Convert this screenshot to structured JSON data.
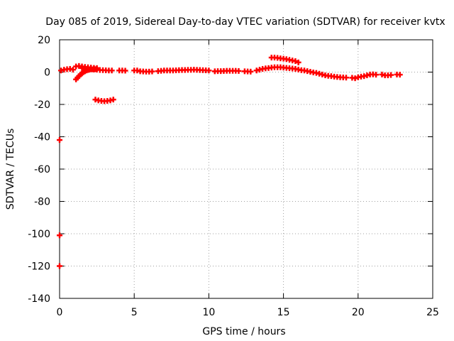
{
  "chart_data": {
    "type": "scatter",
    "title": "Day 085 of 2019, Sidereal Day-to-day VTEC variation (SDTVAR) for receiver kvtx",
    "xlabel": "GPS time / hours",
    "ylabel": "SDTVAR / TECUs",
    "xlim": [
      0,
      25
    ],
    "ylim": [
      -140,
      20
    ],
    "x_ticks": [
      "0",
      "5",
      "10",
      "15",
      "20",
      "25"
    ],
    "y_ticks": [
      "20",
      "0",
      "-20",
      "-40",
      "-60",
      "-80",
      "-100",
      "-120",
      "-140"
    ],
    "grid": true,
    "marker": "plus",
    "color": "#ff0000",
    "series": [
      {
        "points": [
          [
            0.1,
            1.0
          ],
          [
            0.3,
            1.5
          ],
          [
            0.5,
            1.8
          ],
          [
            0.7,
            2.0
          ],
          [
            0.9,
            1.5
          ],
          [
            1.1,
            3.5
          ],
          [
            1.3,
            3.8
          ],
          [
            1.5,
            3.5
          ],
          [
            1.7,
            3.2
          ],
          [
            1.9,
            3.0
          ],
          [
            2.1,
            2.8
          ],
          [
            2.3,
            2.6
          ],
          [
            2.5,
            2.5
          ],
          [
            1.1,
            -4.5
          ],
          [
            1.2,
            -3.5
          ],
          [
            1.3,
            -2.5
          ],
          [
            1.4,
            -1.5
          ],
          [
            1.5,
            -0.8
          ],
          [
            1.6,
            0.0
          ],
          [
            1.7,
            0.5
          ],
          [
            1.8,
            1.0
          ],
          [
            1.9,
            1.3
          ],
          [
            2.0,
            1.5
          ],
          [
            2.2,
            1.7
          ],
          [
            2.4,
            1.8
          ],
          [
            1.5,
            2.5
          ],
          [
            1.7,
            2.2
          ],
          [
            1.9,
            2.0
          ],
          [
            2.1,
            1.8
          ],
          [
            2.3,
            1.6
          ],
          [
            2.5,
            1.5
          ],
          [
            2.7,
            1.3
          ],
          [
            2.9,
            1.2
          ],
          [
            3.1,
            1.1
          ],
          [
            3.3,
            1.0
          ],
          [
            3.5,
            1.0
          ],
          [
            2.4,
            -17.0
          ],
          [
            2.6,
            -17.5
          ],
          [
            2.8,
            -17.8
          ],
          [
            3.0,
            -18.0
          ],
          [
            3.2,
            -17.8
          ],
          [
            3.4,
            -17.5
          ],
          [
            3.6,
            -17.0
          ],
          [
            4.0,
            1.0
          ],
          [
            4.2,
            1.0
          ],
          [
            4.4,
            0.9
          ],
          [
            5.0,
            1.0
          ],
          [
            5.2,
            1.0
          ],
          [
            5.4,
            0.5
          ],
          [
            5.6,
            0.4
          ],
          [
            5.8,
            0.3
          ],
          [
            6.0,
            0.3
          ],
          [
            6.2,
            0.4
          ],
          [
            6.6,
            0.6
          ],
          [
            6.8,
            0.8
          ],
          [
            7.0,
            1.0
          ],
          [
            7.2,
            1.0
          ],
          [
            7.4,
            1.0
          ],
          [
            7.6,
            1.0
          ],
          [
            7.8,
            1.1
          ],
          [
            8.0,
            1.2
          ],
          [
            8.2,
            1.3
          ],
          [
            8.4,
            1.3
          ],
          [
            8.6,
            1.4
          ],
          [
            8.8,
            1.4
          ],
          [
            9.0,
            1.5
          ],
          [
            9.2,
            1.4
          ],
          [
            9.4,
            1.3
          ],
          [
            9.6,
            1.2
          ],
          [
            9.8,
            1.1
          ],
          [
            10.0,
            1.0
          ],
          [
            10.4,
            0.5
          ],
          [
            10.6,
            0.6
          ],
          [
            10.8,
            0.6
          ],
          [
            11.0,
            0.7
          ],
          [
            11.2,
            0.8
          ],
          [
            11.4,
            0.8
          ],
          [
            11.6,
            0.8
          ],
          [
            11.8,
            0.8
          ],
          [
            12.0,
            0.7
          ],
          [
            12.4,
            0.5
          ],
          [
            12.6,
            0.4
          ],
          [
            12.8,
            0.3
          ],
          [
            13.2,
            1.0
          ],
          [
            13.4,
            1.5
          ],
          [
            13.6,
            2.0
          ],
          [
            13.8,
            2.3
          ],
          [
            14.0,
            2.5
          ],
          [
            14.2,
            2.8
          ],
          [
            14.4,
            3.0
          ],
          [
            14.6,
            3.0
          ],
          [
            14.8,
            3.0
          ],
          [
            15.0,
            2.8
          ],
          [
            15.2,
            2.6
          ],
          [
            15.4,
            2.4
          ],
          [
            15.6,
            2.2
          ],
          [
            15.8,
            2.0
          ],
          [
            16.0,
            1.6
          ],
          [
            16.2,
            1.2
          ],
          [
            16.4,
            1.0
          ],
          [
            14.2,
            9.0
          ],
          [
            14.4,
            9.0
          ],
          [
            14.6,
            8.8
          ],
          [
            14.8,
            8.5
          ],
          [
            15.0,
            8.3
          ],
          [
            15.2,
            8.0
          ],
          [
            15.4,
            7.6
          ],
          [
            15.6,
            7.2
          ],
          [
            15.8,
            6.8
          ],
          [
            16.0,
            6.0
          ],
          [
            16.6,
            0.6
          ],
          [
            16.8,
            0.2
          ],
          [
            17.0,
            -0.2
          ],
          [
            17.2,
            -0.5
          ],
          [
            17.4,
            -1.0
          ],
          [
            17.6,
            -1.5
          ],
          [
            17.8,
            -2.0
          ],
          [
            18.0,
            -2.3
          ],
          [
            18.2,
            -2.5
          ],
          [
            18.4,
            -2.8
          ],
          [
            18.6,
            -3.0
          ],
          [
            18.8,
            -3.2
          ],
          [
            19.0,
            -3.3
          ],
          [
            19.2,
            -3.4
          ],
          [
            19.6,
            -3.5
          ],
          [
            19.8,
            -3.8
          ],
          [
            20.0,
            -3.2
          ],
          [
            20.2,
            -2.8
          ],
          [
            20.4,
            -2.5
          ],
          [
            20.6,
            -2.0
          ],
          [
            20.8,
            -1.5
          ],
          [
            21.0,
            -1.4
          ],
          [
            21.2,
            -1.6
          ],
          [
            21.6,
            -1.5
          ],
          [
            21.8,
            -2.0
          ],
          [
            22.0,
            -2.0
          ],
          [
            22.2,
            -1.8
          ],
          [
            22.6,
            -1.5
          ],
          [
            22.8,
            -1.6
          ],
          [
            0.0,
            -42.0
          ],
          [
            0.0,
            -101.0
          ],
          [
            0.0,
            -120.0
          ]
        ]
      }
    ]
  }
}
